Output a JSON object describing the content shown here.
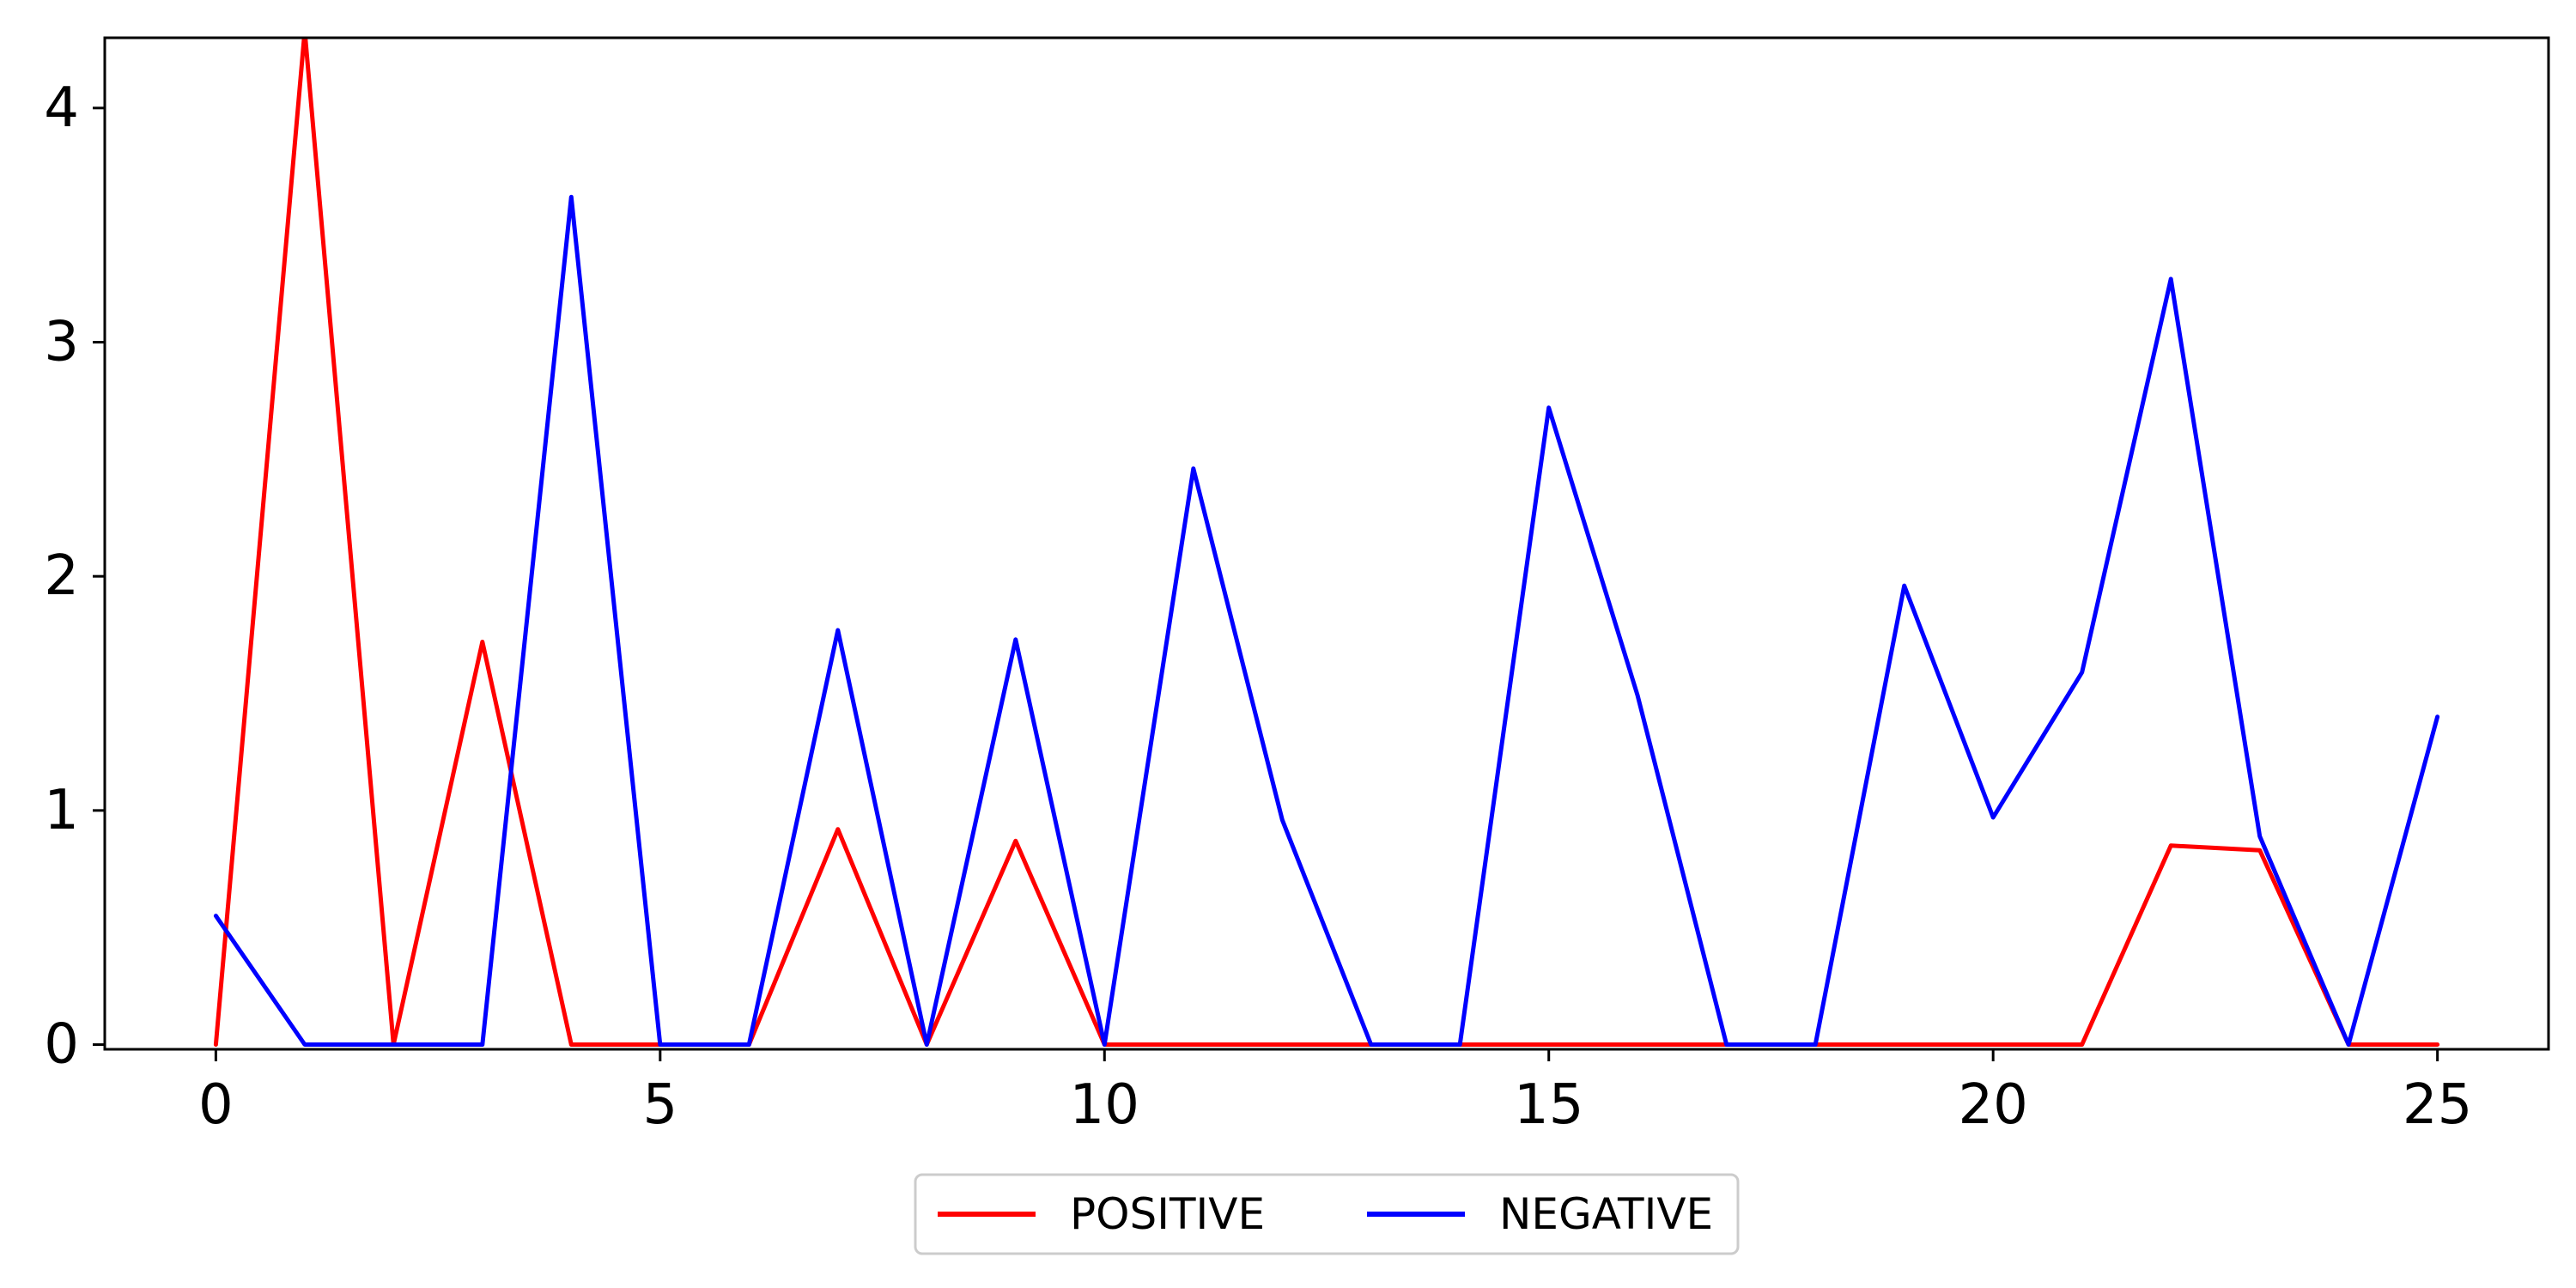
{
  "chart_data": {
    "type": "line",
    "title": "",
    "xlabel": "",
    "ylabel": "",
    "xlim": [
      -1.25,
      26.25
    ],
    "ylim": [
      -0.02,
      4.3
    ],
    "x_ticks": [
      0,
      5,
      10,
      15,
      20,
      25
    ],
    "y_ticks": [
      0,
      1,
      2,
      3,
      4
    ],
    "grid": false,
    "legend_position": "bottom-center",
    "x": [
      0,
      1,
      2,
      3,
      4,
      5,
      6,
      7,
      8,
      9,
      10,
      11,
      12,
      13,
      14,
      15,
      16,
      17,
      18,
      19,
      20,
      21,
      22,
      23,
      24,
      25
    ],
    "series": [
      {
        "name": "POSITIVE",
        "color": "#ff0000",
        "values": [
          0,
          4.33,
          0,
          1.72,
          0,
          0,
          0,
          0.92,
          0,
          0.87,
          0,
          0,
          0,
          0,
          0,
          0,
          0,
          0,
          0,
          0,
          0,
          0,
          0.85,
          0.83,
          0,
          0
        ]
      },
      {
        "name": "NEGATIVE",
        "color": "#0000ff",
        "values": [
          0.55,
          0,
          0,
          0,
          3.62,
          0,
          0,
          1.77,
          0,
          1.73,
          0,
          2.46,
          0.96,
          0,
          0,
          2.72,
          1.49,
          0,
          0,
          1.96,
          0.97,
          1.59,
          3.27,
          0.89,
          0,
          1.4
        ]
      }
    ]
  }
}
